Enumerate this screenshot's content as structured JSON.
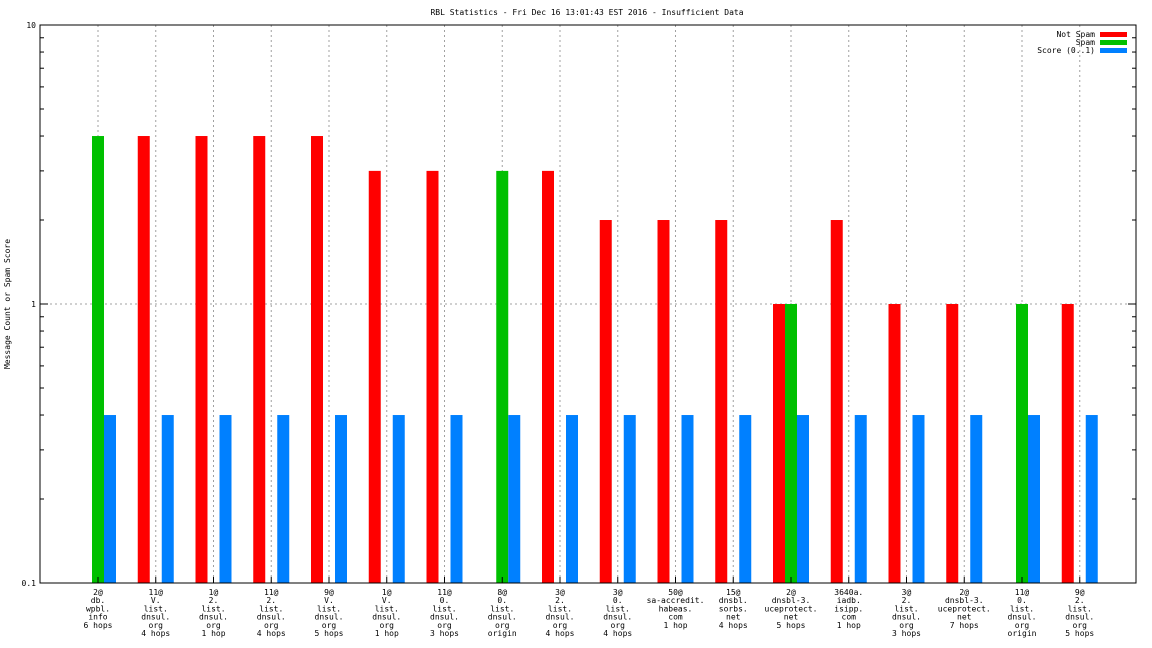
{
  "chart_data": {
    "type": "bar",
    "title": "RBL Statistics - Fri Dec 16 13:01:43 EST 2016 - Insufficient Data",
    "ylabel": "Message Count or Spam Score",
    "xlabel": "",
    "yscale": "log",
    "ylim": [
      0.1,
      10
    ],
    "yticks": [
      {
        "value": 0.1,
        "label": "0.1"
      },
      {
        "value": 1,
        "label": "1"
      },
      {
        "value": 10,
        "label": "10"
      }
    ],
    "grid": true,
    "legend_position": "top-right",
    "categories": [
      [
        "2@",
        "db.",
        "wpbl.",
        "info",
        "6 hops"
      ],
      [
        "11@",
        "V.",
        "list.",
        "dnsul.",
        "org",
        "4 hops"
      ],
      [
        "1@",
        "2.",
        "list.",
        "dnsul.",
        "org",
        "1 hop"
      ],
      [
        "11@",
        "2.",
        "list.",
        "dnsul.",
        "org",
        "4 hops"
      ],
      [
        "9@",
        "V.",
        "list.",
        "dnsul.",
        "org",
        "5 hops"
      ],
      [
        "1@",
        "V.",
        "list.",
        "dnsul.",
        "org",
        "1 hop"
      ],
      [
        "11@",
        "0.",
        "list.",
        "dnsul.",
        "org",
        "3 hops"
      ],
      [
        "8@",
        "0.",
        "list.",
        "dnsul.",
        "org",
        "origin"
      ],
      [
        "3@",
        "2.",
        "list.",
        "dnsul.",
        "org",
        "4 hops"
      ],
      [
        "3@",
        "0.",
        "list.",
        "dnsul.",
        "org",
        "4 hops"
      ],
      [
        "50@",
        "sa-accredit.",
        "habeas.",
        "com",
        "1 hop"
      ],
      [
        "15@",
        "dnsbl.",
        "sorbs.",
        "net",
        "4 hops"
      ],
      [
        "2@",
        "dnsbl-3.",
        "uceprotect.",
        "net",
        "5 hops"
      ],
      [
        "3640a.",
        "iadb.",
        "isipp.",
        "com",
        "1 hop"
      ],
      [
        "3@",
        "2.",
        "list.",
        "dnsul.",
        "org",
        "3 hops"
      ],
      [
        "2@",
        "dnsbl-3.",
        "uceprotect.",
        "net",
        "7 hops"
      ],
      [
        "11@",
        "0.",
        "list.",
        "dnsul.",
        "org",
        "origin"
      ],
      [
        "9@",
        "2.",
        "list.",
        "dnsul.",
        "org",
        "5 hops"
      ]
    ],
    "series": [
      {
        "name": "Not Spam",
        "color": "#ff0000",
        "values": [
          0,
          4,
          4,
          4,
          4,
          3,
          3,
          0,
          3,
          2,
          2,
          2,
          1,
          2,
          1,
          1,
          0,
          1
        ]
      },
      {
        "name": "Spam",
        "color": "#00c000",
        "values": [
          4,
          0,
          0,
          0,
          0,
          0,
          0,
          3,
          0,
          0,
          0,
          0,
          1,
          0,
          0,
          0,
          1,
          0
        ]
      },
      {
        "name": "Score (0..1)",
        "color": "#0080ff",
        "values": [
          0.4,
          0.4,
          0.4,
          0.4,
          0.4,
          0.4,
          0.4,
          0.4,
          0.4,
          0.4,
          0.4,
          0.4,
          0.4,
          0.4,
          0.4,
          0.4,
          0.4,
          0.4
        ]
      }
    ]
  }
}
